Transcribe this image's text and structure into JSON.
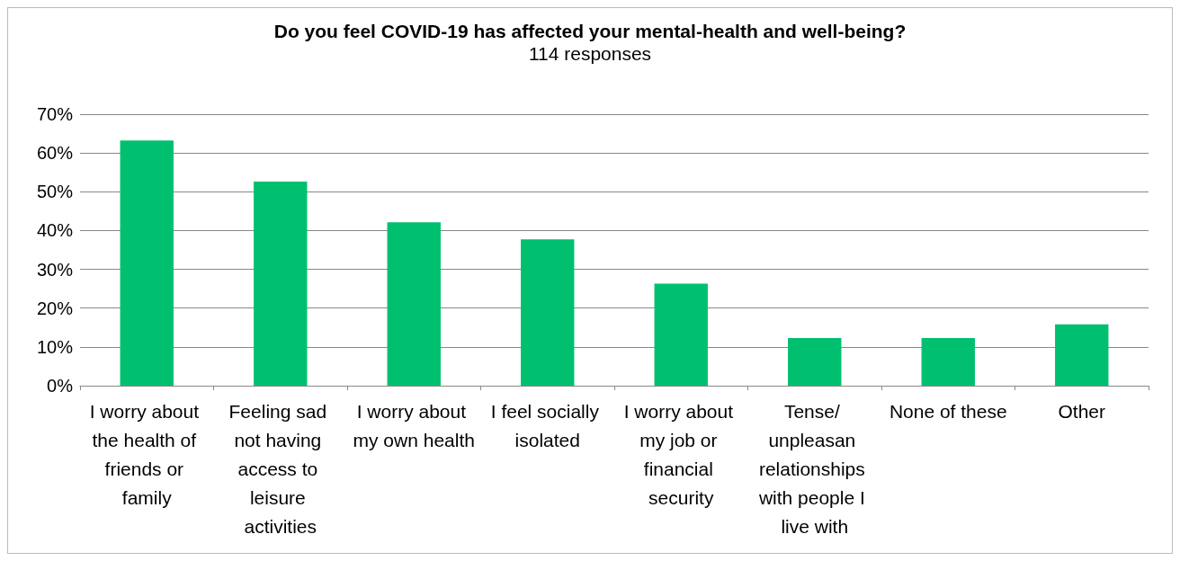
{
  "chart_data": {
    "type": "bar",
    "title": "Do you feel COVID-19 has affected your mental-health and well-being?",
    "subtitle": "114 responses",
    "categories": [
      "I worry about the health of friends or family",
      "Feeling sad not having access to leisure activities",
      "I worry about my own health",
      "I feel socially isolated",
      "I worry about my job or financial security",
      "Tense/ unpleasan relationships with people I live with",
      "None of these",
      "Other"
    ],
    "values": [
      63.2,
      52.6,
      42.1,
      37.7,
      26.3,
      12.3,
      12.3,
      15.8
    ],
    "color": "#00c070",
    "ylim": [
      0,
      70
    ],
    "yticks": [
      {
        "value": 0,
        "label": "0%"
      },
      {
        "value": 10,
        "label": "10%"
      },
      {
        "value": 20,
        "label": "20%"
      },
      {
        "value": 30,
        "label": "30%"
      },
      {
        "value": 40,
        "label": "40%"
      },
      {
        "value": 50,
        "label": "50%"
      },
      {
        "value": 60,
        "label": "60%"
      },
      {
        "value": 70,
        "label": "70%"
      }
    ],
    "grid": "y"
  }
}
